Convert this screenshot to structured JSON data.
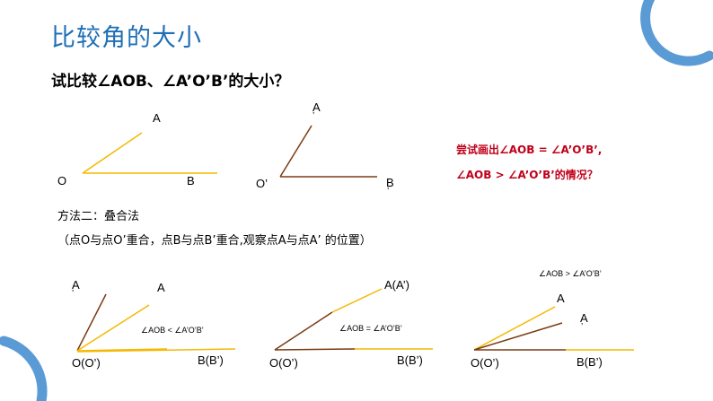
{
  "slide": {
    "title": "比较角的大小",
    "question": "试比较∠AOB、∠A’O’B’的大小？",
    "hint_line1": "尝试画出∠AOB = ∠A’O’B’,",
    "hint_line2": "∠AOB > ∠A’O’B’的情况？",
    "method_title": "方法二：叠合法",
    "method_desc": "（点O与点O’重合，点B与点B’重合,观察点A与点A’ 的位置）"
  },
  "figure1": {
    "A": "A",
    "O": "O",
    "B": "B"
  },
  "figure2": {
    "A": "A",
    "A_prime": "’",
    "O": "O’",
    "B": "B",
    "B_prime": "’"
  },
  "case_lt": {
    "A_prime": "A",
    "A_prime_mark": "’",
    "A": "A",
    "O": "O(O’)",
    "B": "B(B’)",
    "relation": "∠AOB < ∠A’O’B’"
  },
  "case_eq": {
    "A": "A(A’)",
    "O": "O(O’)",
    "B": "B(B’)",
    "relation": "∠AOB = ∠A’O’B’"
  },
  "case_gt": {
    "A": "A",
    "A_prime": "A",
    "A_prime_mark": "’",
    "O": "O(O’)",
    "B": "B(B’)",
    "relation": "∠AOB > ∠A’O’B’"
  },
  "colors": {
    "title": "#1f6fb5",
    "decor": "#5b9bd5",
    "yellow": "#f5b800",
    "brown": "#7a3b12",
    "red": "#c0001a"
  }
}
